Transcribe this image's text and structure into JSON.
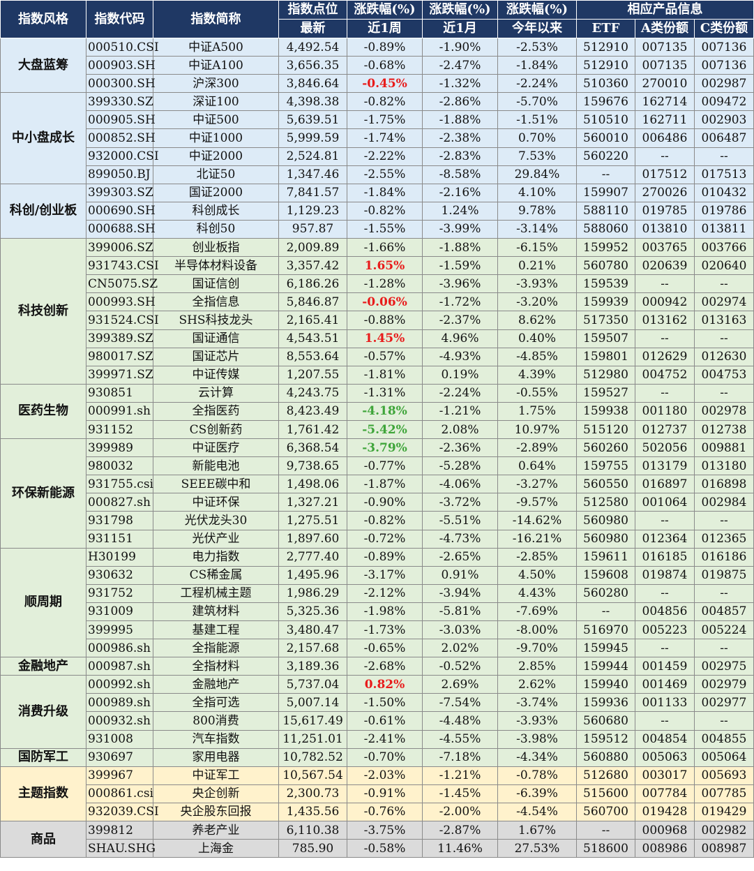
{
  "headers": {
    "style": "指数风格",
    "code": "指数代码",
    "name": "指数简称",
    "points": "指数点位",
    "points_sub": "最新",
    "chg1": "涨跌幅(%)",
    "chg1_sub": "近1周",
    "chg2": "涨跌幅(%)",
    "chg2_sub": "近1月",
    "chg3": "涨跌幅(%)",
    "chg3_sub": "今年以来",
    "products": "相应产品信息",
    "etf": "ETF",
    "a_share": "A类份额",
    "c_share": "C类份额"
  },
  "colors": {
    "header_bg": "#1f3864",
    "blue_group": "#ddebf7",
    "green_group": "#e2efda",
    "yellow_group": "#fff2cc",
    "gray_group": "#dbdbdb",
    "positive_highlight": "#e81b1b",
    "negative_highlight": "#3fa53a"
  },
  "groups": [
    {
      "name": "大盘蓝筹",
      "start": 0,
      "span": 3,
      "color": 0
    },
    {
      "name": "中小盘成长",
      "start": 3,
      "span": 5,
      "color": 0
    },
    {
      "name": "科创/创业板",
      "start": 8,
      "span": 3,
      "color": 0
    },
    {
      "name": "科技创新",
      "start": 11,
      "span": 8,
      "color": 1
    },
    {
      "name": "医药生物",
      "start": 19,
      "span": 3,
      "color": 1
    },
    {
      "name": "环保新能源",
      "start": 22,
      "span": 6,
      "color": 1
    },
    {
      "name": "顺周期",
      "start": 28,
      "span": 6,
      "color": 1
    },
    {
      "name": "金融地产",
      "start": 34,
      "span": 1,
      "color": 1
    },
    {
      "name": "消费升级",
      "start": 35,
      "span": 4,
      "color": 1
    },
    {
      "name": "国防军工",
      "start": 39,
      "span": 1,
      "color": 1
    },
    {
      "name": "主题指数",
      "start": 40,
      "span": 3,
      "color": 2
    },
    {
      "name": "商品",
      "start": 43,
      "span": 2,
      "color": 3
    }
  ],
  "rows": [
    {
      "code": "000510.CSI",
      "name": "中证A500",
      "points": "4,492.54",
      "w1": "-0.89%",
      "m1": "-1.90%",
      "ytd": "-2.53%",
      "etf": "512910",
      "a": "007135",
      "c": "007136",
      "hl": ""
    },
    {
      "code": "000903.SH",
      "name": "中证A100",
      "points": "3,656.35",
      "w1": "-0.68%",
      "m1": "-2.47%",
      "ytd": "-1.84%",
      "etf": "512910",
      "a": "007135",
      "c": "007136",
      "hl": ""
    },
    {
      "code": "000300.SH",
      "name": "沪深300",
      "points": "3,846.64",
      "w1": "-0.45%",
      "m1": "-1.32%",
      "ytd": "-2.24%",
      "etf": "510360",
      "a": "270010",
      "c": "002987",
      "hl": "up"
    },
    {
      "code": "399330.SZ",
      "name": "深证100",
      "points": "4,398.38",
      "w1": "-0.82%",
      "m1": "-2.86%",
      "ytd": "-5.70%",
      "etf": "159676",
      "a": "162714",
      "c": "009472",
      "hl": ""
    },
    {
      "code": "000905.SH",
      "name": "中证500",
      "points": "5,639.51",
      "w1": "-1.75%",
      "m1": "-1.88%",
      "ytd": "-1.51%",
      "etf": "510510",
      "a": "162711",
      "c": "002903",
      "hl": ""
    },
    {
      "code": "000852.SH",
      "name": "中证1000",
      "points": "5,999.59",
      "w1": "-1.74%",
      "m1": "-2.38%",
      "ytd": "0.70%",
      "etf": "560010",
      "a": "006486",
      "c": "006487",
      "hl": ""
    },
    {
      "code": "932000.CSI",
      "name": "中证2000",
      "points": "2,524.81",
      "w1": "-2.22%",
      "m1": "-2.83%",
      "ytd": "7.53%",
      "etf": "560220",
      "a": "--",
      "c": "--",
      "hl": ""
    },
    {
      "code": "899050.BJ",
      "name": "北证50",
      "points": "1,347.46",
      "w1": "-2.55%",
      "m1": "-8.58%",
      "ytd": "29.84%",
      "etf": "--",
      "a": "017512",
      "c": "017513",
      "hl": ""
    },
    {
      "code": "399303.SZ",
      "name": "国证2000",
      "points": "7,841.57",
      "w1": "-1.84%",
      "m1": "-2.16%",
      "ytd": "4.10%",
      "etf": "159907",
      "a": "270026",
      "c": "010432",
      "hl": ""
    },
    {
      "code": "000690.SH",
      "name": "科创成长",
      "points": "1,129.23",
      "w1": "-0.82%",
      "m1": "1.24%",
      "ytd": "9.78%",
      "etf": "588110",
      "a": "019785",
      "c": "019786",
      "hl": ""
    },
    {
      "code": "000688.SH",
      "name": "科创50",
      "points": "957.87",
      "w1": "-1.55%",
      "m1": "-3.99%",
      "ytd": "-3.14%",
      "etf": "588060",
      "a": "013810",
      "c": "013811",
      "hl": ""
    },
    {
      "code": "399006.SZ",
      "name": "创业板指",
      "points": "2,009.89",
      "w1": "-1.66%",
      "m1": "-1.88%",
      "ytd": "-6.15%",
      "etf": "159952",
      "a": "003765",
      "c": "003766",
      "hl": ""
    },
    {
      "code": "931743.CSI",
      "name": "半导体材料设备",
      "points": "3,357.42",
      "w1": "1.65%",
      "m1": "-1.59%",
      "ytd": "0.21%",
      "etf": "560780",
      "a": "020639",
      "c": "020640",
      "hl": "up"
    },
    {
      "code": "CN5075.SZ",
      "name": "国证信创",
      "points": "6,186.26",
      "w1": "-1.28%",
      "m1": "-3.96%",
      "ytd": "-3.93%",
      "etf": "159539",
      "a": "--",
      "c": "--",
      "hl": ""
    },
    {
      "code": "000993.SH",
      "name": "全指信息",
      "points": "5,846.87",
      "w1": "-0.06%",
      "m1": "-1.72%",
      "ytd": "-3.20%",
      "etf": "159939",
      "a": "000942",
      "c": "002974",
      "hl": "up"
    },
    {
      "code": "931524.CSI",
      "name": "SHS科技龙头",
      "points": "2,165.41",
      "w1": "-0.88%",
      "m1": "-2.37%",
      "ytd": "8.62%",
      "etf": "517350",
      "a": "013162",
      "c": "013163",
      "hl": ""
    },
    {
      "code": "399389.SZ",
      "name": "国证通信",
      "points": "4,543.51",
      "w1": "1.45%",
      "m1": "4.96%",
      "ytd": "0.40%",
      "etf": "159507",
      "a": "--",
      "c": "--",
      "hl": "up"
    },
    {
      "code": "980017.SZ",
      "name": "国证芯片",
      "points": "8,553.64",
      "w1": "-0.57%",
      "m1": "-4.93%",
      "ytd": "-4.85%",
      "etf": "159801",
      "a": "012629",
      "c": "012630",
      "hl": ""
    },
    {
      "code": "399971.SZ",
      "name": "中证传媒",
      "points": "1,207.55",
      "w1": "-1.81%",
      "m1": "0.19%",
      "ytd": "4.39%",
      "etf": "512980",
      "a": "004752",
      "c": "004753",
      "hl": ""
    },
    {
      "code": "930851",
      "name": "云计算",
      "points": "4,243.75",
      "w1": "-1.31%",
      "m1": "-2.24%",
      "ytd": "-0.55%",
      "etf": "159527",
      "a": "--",
      "c": "--",
      "hl": ""
    },
    {
      "code": "000991.sh",
      "name": "全指医药",
      "points": "8,423.49",
      "w1": "-4.18%",
      "m1": "-1.21%",
      "ytd": "1.75%",
      "etf": "159938",
      "a": "001180",
      "c": "002978",
      "hl": "down"
    },
    {
      "code": "931152",
      "name": "CS创新药",
      "points": "1,761.42",
      "w1": "-5.42%",
      "m1": "2.08%",
      "ytd": "10.97%",
      "etf": "515120",
      "a": "012737",
      "c": "012738",
      "hl": "down"
    },
    {
      "code": "399989",
      "name": "中证医疗",
      "points": "6,368.54",
      "w1": "-3.79%",
      "m1": "-2.36%",
      "ytd": "-2.89%",
      "etf": "560260",
      "a": "502056",
      "c": "009881",
      "hl": "down"
    },
    {
      "code": "980032",
      "name": "新能电池",
      "points": "9,738.65",
      "w1": "-0.77%",
      "m1": "-5.28%",
      "ytd": "0.64%",
      "etf": "159755",
      "a": "013179",
      "c": "013180",
      "hl": ""
    },
    {
      "code": "931755.csi",
      "name": "SEEE碳中和",
      "points": "1,498.06",
      "w1": "-1.87%",
      "m1": "-4.06%",
      "ytd": "-3.27%",
      "etf": "560550",
      "a": "016897",
      "c": "016898",
      "hl": ""
    },
    {
      "code": "000827.sh",
      "name": "中证环保",
      "points": "1,327.21",
      "w1": "-0.90%",
      "m1": "-3.72%",
      "ytd": "-9.57%",
      "etf": "512580",
      "a": "001064",
      "c": "002984",
      "hl": ""
    },
    {
      "code": "931798",
      "name": "光伏龙头30",
      "points": "1,275.51",
      "w1": "-0.82%",
      "m1": "-5.51%",
      "ytd": "-14.62%",
      "etf": "560980",
      "a": "--",
      "c": "--",
      "hl": ""
    },
    {
      "code": "931151",
      "name": "光伏产业",
      "points": "1,897.60",
      "w1": "-0.72%",
      "m1": "-4.73%",
      "ytd": "-16.21%",
      "etf": "560980",
      "a": "012364",
      "c": "012365",
      "hl": ""
    },
    {
      "code": "H30199",
      "name": "电力指数",
      "points": "2,777.40",
      "w1": "-0.89%",
      "m1": "-2.65%",
      "ytd": "-2.85%",
      "etf": "159611",
      "a": "016185",
      "c": "016186",
      "hl": ""
    },
    {
      "code": "930632",
      "name": "CS稀金属",
      "points": "1,495.96",
      "w1": "-3.17%",
      "m1": "0.91%",
      "ytd": "4.50%",
      "etf": "159608",
      "a": "019874",
      "c": "019875",
      "hl": ""
    },
    {
      "code": "931752",
      "name": "工程机械主题",
      "points": "1,986.29",
      "w1": "-2.12%",
      "m1": "-3.94%",
      "ytd": "4.43%",
      "etf": "560280",
      "a": "--",
      "c": "--",
      "hl": ""
    },
    {
      "code": "931009",
      "name": "建筑材料",
      "points": "5,325.36",
      "w1": "-1.98%",
      "m1": "-5.81%",
      "ytd": "-7.69%",
      "etf": "--",
      "a": "004856",
      "c": "004857",
      "hl": ""
    },
    {
      "code": "399995",
      "name": "基建工程",
      "points": "3,480.47",
      "w1": "-1.73%",
      "m1": "-3.03%",
      "ytd": "-8.00%",
      "etf": "516970",
      "a": "005223",
      "c": "005224",
      "hl": ""
    },
    {
      "code": "000986.sh",
      "name": "全指能源",
      "points": "2,157.68",
      "w1": "-0.65%",
      "m1": "2.02%",
      "ytd": "-9.70%",
      "etf": "159945",
      "a": "--",
      "c": "--",
      "hl": ""
    },
    {
      "code": "000987.sh",
      "name": "全指材料",
      "points": "3,189.36",
      "w1": "-2.68%",
      "m1": "-0.52%",
      "ytd": "2.85%",
      "etf": "159944",
      "a": "001459",
      "c": "002975",
      "hl": ""
    },
    {
      "code": "000992.sh",
      "name": "金融地产",
      "points": "5,737.04",
      "w1": "0.82%",
      "m1": "2.69%",
      "ytd": "2.62%",
      "etf": "159940",
      "a": "001469",
      "c": "002979",
      "hl": "up"
    },
    {
      "code": "000989.sh",
      "name": "全指可选",
      "points": "5,007.14",
      "w1": "-1.50%",
      "m1": "-7.54%",
      "ytd": "-3.74%",
      "etf": "159936",
      "a": "001133",
      "c": "002977",
      "hl": ""
    },
    {
      "code": "000932.sh",
      "name": "800消费",
      "points": "15,617.49",
      "w1": "-0.61%",
      "m1": "-4.48%",
      "ytd": "-3.93%",
      "etf": "560680",
      "a": "--",
      "c": "--",
      "hl": ""
    },
    {
      "code": "931008",
      "name": "汽车指数",
      "points": "11,251.01",
      "w1": "-2.41%",
      "m1": "-4.55%",
      "ytd": "-3.98%",
      "etf": "159512",
      "a": "004854",
      "c": "004855",
      "hl": ""
    },
    {
      "code": "930697",
      "name": "家用电器",
      "points": "10,782.52",
      "w1": "-0.70%",
      "m1": "-7.18%",
      "ytd": "-4.34%",
      "etf": "560880",
      "a": "005063",
      "c": "005064",
      "hl": ""
    },
    {
      "code": "399967",
      "name": "中证军工",
      "points": "10,567.54",
      "w1": "-2.03%",
      "m1": "-1.21%",
      "ytd": "-0.78%",
      "etf": "512680",
      "a": "003017",
      "c": "005693",
      "hl": ""
    },
    {
      "code": "000861.csi",
      "name": "央企创新",
      "points": "2,300.73",
      "w1": "-0.91%",
      "m1": "-1.45%",
      "ytd": "-6.39%",
      "etf": "515600",
      "a": "007784",
      "c": "007785",
      "hl": ""
    },
    {
      "code": "932039.CSI",
      "name": "央企股东回报",
      "points": "1,435.56",
      "w1": "-0.76%",
      "m1": "-2.00%",
      "ytd": "-4.54%",
      "etf": "560700",
      "a": "019428",
      "c": "019429",
      "hl": ""
    },
    {
      "code": "399812",
      "name": "养老产业",
      "points": "6,110.38",
      "w1": "-3.75%",
      "m1": "-2.87%",
      "ytd": "1.67%",
      "etf": "--",
      "a": "000968",
      "c": "002982",
      "hl": ""
    },
    {
      "code": "SHAU.SHG",
      "name": "上海金",
      "points": "785.90",
      "w1": "-0.58%",
      "m1": "11.46%",
      "ytd": "27.53%",
      "etf": "518600",
      "a": "008986",
      "c": "008987",
      "hl": ""
    }
  ]
}
